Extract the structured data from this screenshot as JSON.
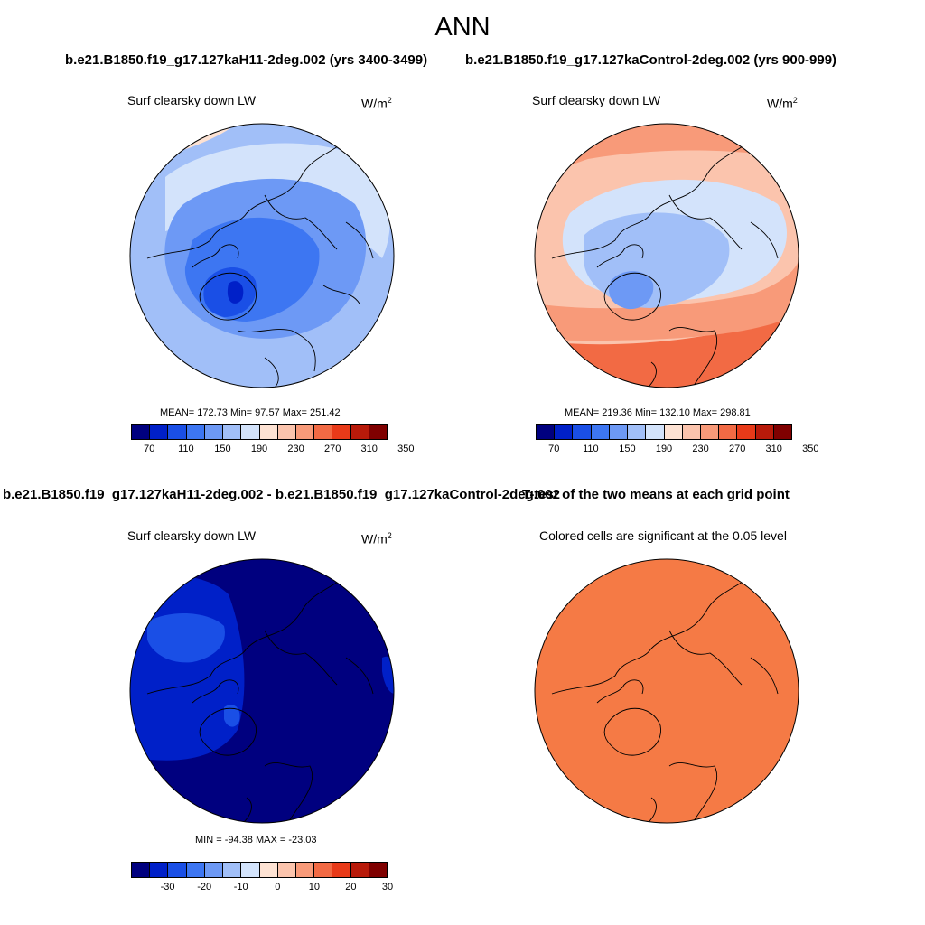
{
  "figure": {
    "title": "ANN",
    "case_title": "b.e21.B1850.f19_g17.127kaH11-2deg.002 (yrs 3400-3499)",
    "control_title": "b.e21.B1850.f19_g17.127kaControl-2deg.002 (yrs 900-999)",
    "diff_title": "b.e21.B1850.f19_g17.127kaH11-2deg.002 - b.e21.B1850.f19_g17.127kaControl-2deg.002",
    "ttest_title": "T-test of the two means at each grid point"
  },
  "panels": {
    "case": {
      "label": "Surf clearsky down LW",
      "units": "W/m",
      "units_exp": "2",
      "stats": "MEAN= 172.73  Min=  97.57  Max= 251.42"
    },
    "control": {
      "label": "Surf clearsky down LW",
      "units": "W/m",
      "units_exp": "2",
      "stats": "MEAN= 219.36  Min= 132.10  Max= 298.81"
    },
    "diff": {
      "label": "Surf clearsky down LW",
      "units": "W/m",
      "units_exp": "2",
      "stats": "MIN = -94.38 MAX = -23.03"
    },
    "ttest": {
      "label": "Colored cells are significant at the 0.05 level"
    }
  },
  "colorbars": {
    "absolute": {
      "ticks": [
        "70",
        "110",
        "150",
        "190",
        "230",
        "270",
        "310",
        "350"
      ],
      "colors": [
        "#00007f",
        "#0020c8",
        "#1a4fe6",
        "#3d76f2",
        "#6d99f5",
        "#a1bff8",
        "#d3e3fb",
        "#fde2d3",
        "#fbc4ad",
        "#f89a79",
        "#f26a44",
        "#e83a19",
        "#b81a0a",
        "#7f0000"
      ]
    },
    "difference": {
      "ticks": [
        "-30",
        "-20",
        "-10",
        "0",
        "10",
        "20",
        "30"
      ],
      "colors": [
        "#00007f",
        "#0020c8",
        "#1a4fe6",
        "#3d76f2",
        "#6d99f5",
        "#a1bff8",
        "#d3e3fb",
        "#fde2d3",
        "#fbc4ad",
        "#f89a79",
        "#f26a44",
        "#e83a19",
        "#b81a0a",
        "#7f0000"
      ]
    }
  },
  "map_colors": {
    "case_base": "#a1bff8",
    "case_mid": "#6d99f5",
    "case_deep": "#3d76f2",
    "case_core": "#1a4fe6",
    "case_edge": "#d3e3fb",
    "case_warm": "#fde2d3",
    "control_base": "#fbc4ad",
    "control_warm": "#f89a79",
    "control_hot": "#f26a44",
    "control_cool": "#d3e3fb",
    "control_blue": "#a1bff8",
    "control_core": "#6d99f5",
    "diff_base": "#00007f",
    "diff_mid": "#0020c8",
    "diff_light": "#1a4fe6",
    "ttest_fill": "#f57a45"
  }
}
